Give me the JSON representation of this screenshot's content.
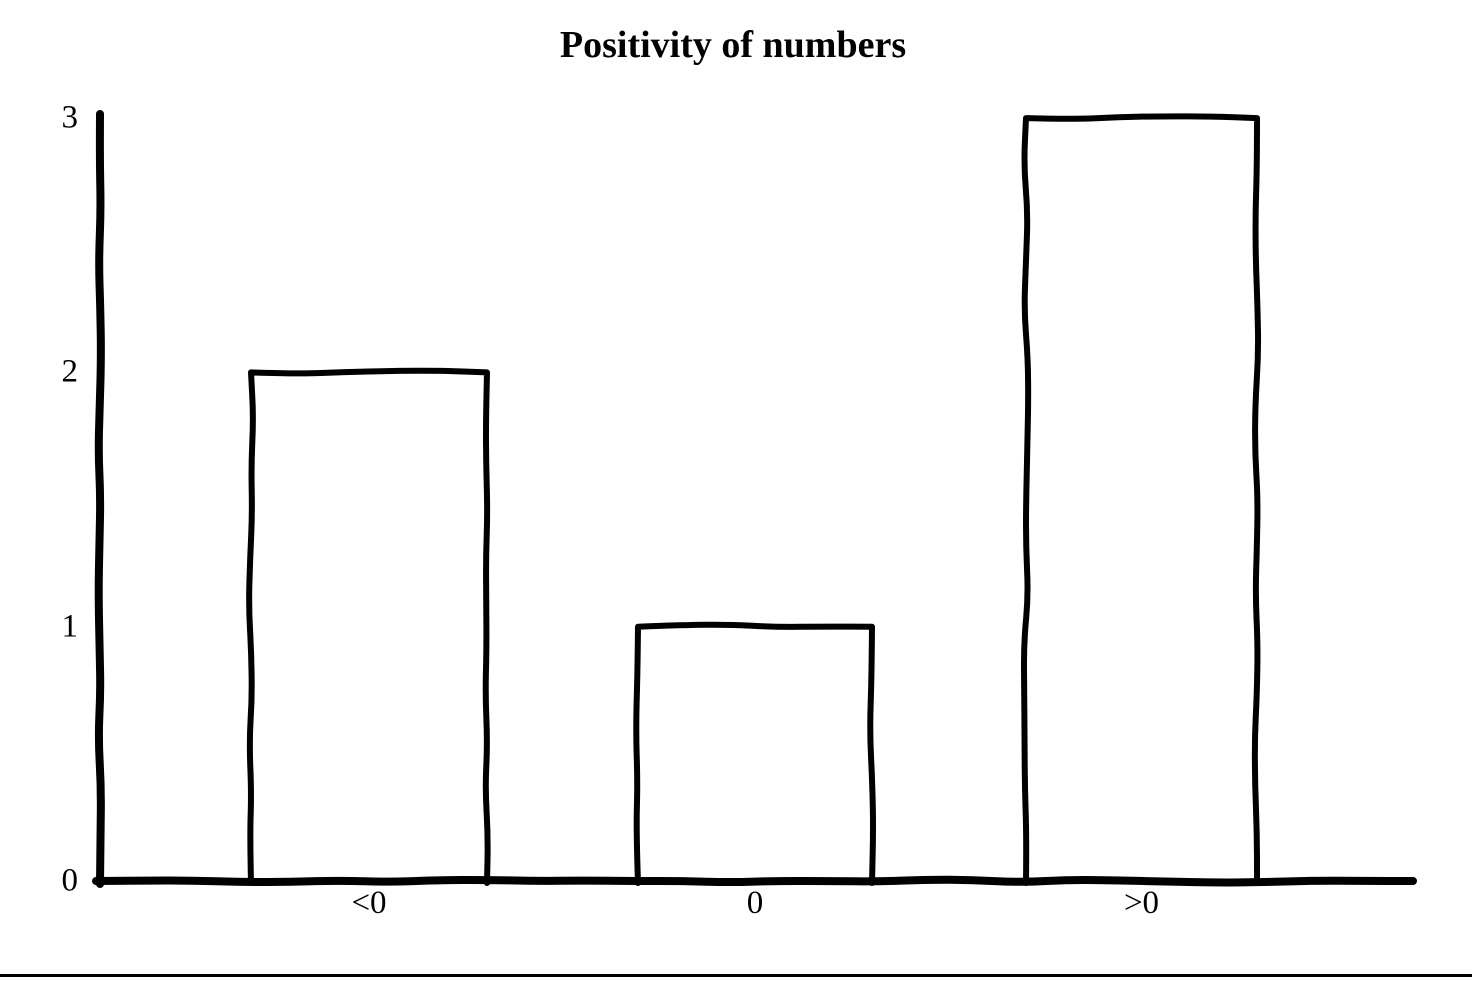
{
  "chart_data": {
    "type": "bar",
    "title": "Positivity of numbers",
    "categories": [
      "<0",
      "0",
      ">0"
    ],
    "values": [
      2,
      1,
      3
    ],
    "yticks": [
      0,
      1,
      2,
      3
    ],
    "ylim": [
      0,
      3
    ],
    "xlabel": "",
    "ylabel": "",
    "grid": false,
    "legend": "none",
    "style": "hand-drawn-sketch",
    "colors": {
      "stroke": "#000000",
      "bar_fill": "#ffffff",
      "background": "#ffffff",
      "text": "#000000"
    }
  }
}
